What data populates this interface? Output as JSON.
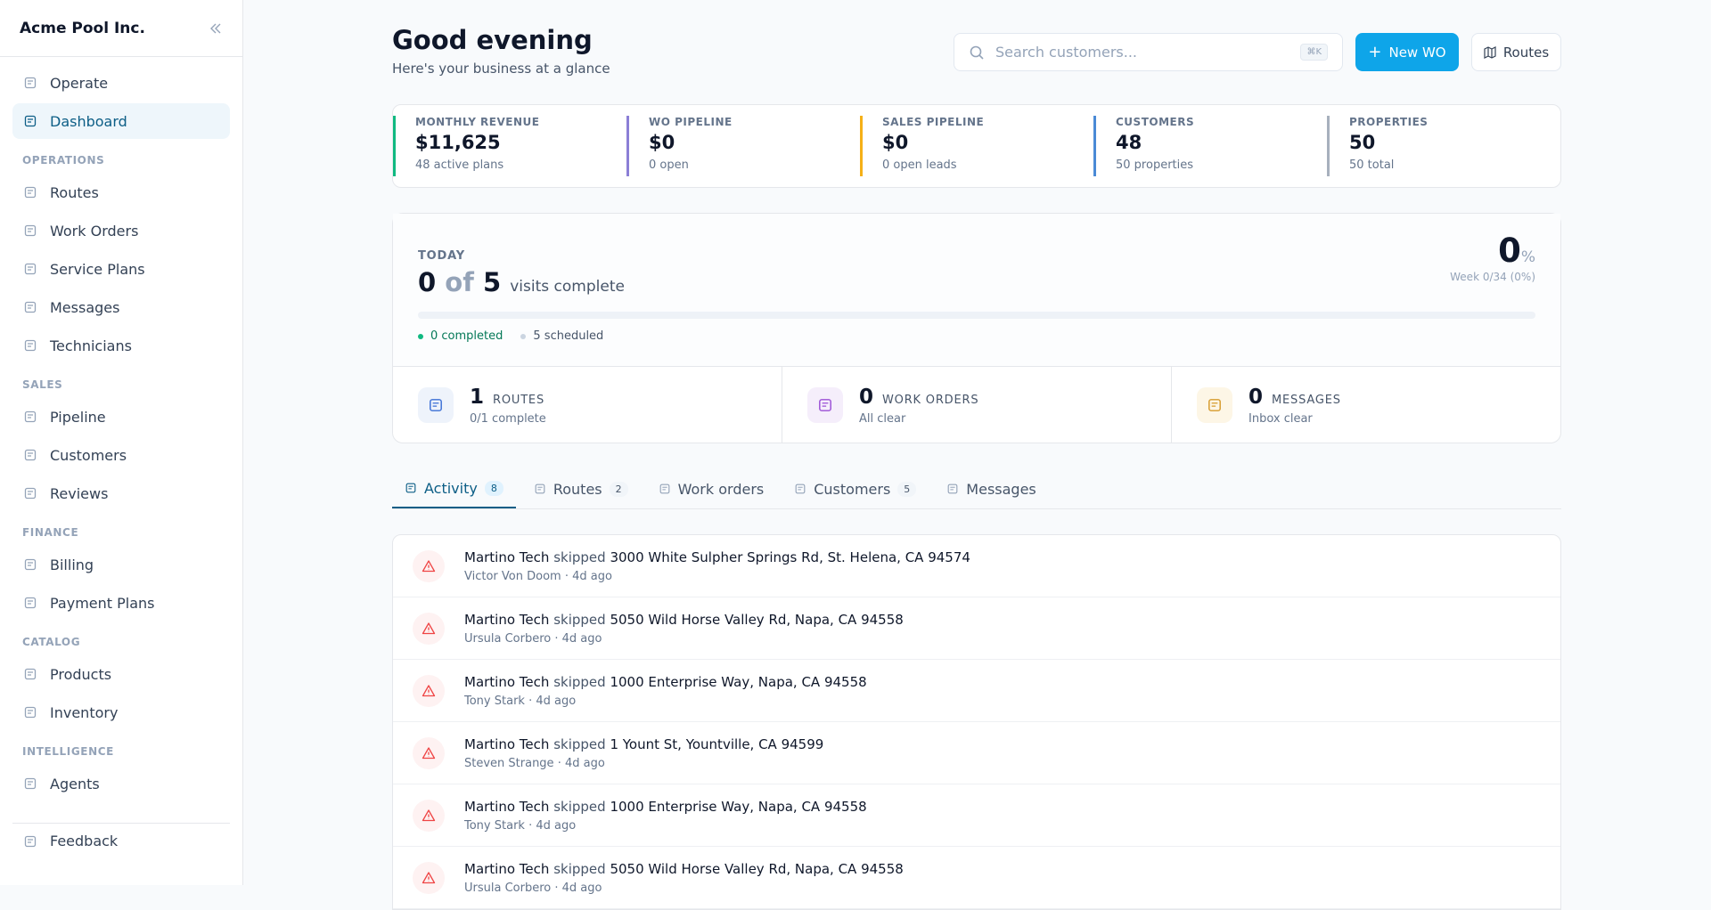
{
  "sidebar": {
    "brand": "Acme Pool Inc.",
    "top": [
      {
        "label": "Operate"
      },
      {
        "label": "Dashboard",
        "active": true
      }
    ],
    "sections": [
      {
        "title": "OPERATIONS",
        "items": [
          "Routes",
          "Work Orders",
          "Service Plans",
          "Messages",
          "Technicians"
        ]
      },
      {
        "title": "SALES",
        "items": [
          "Pipeline",
          "Customers",
          "Reviews"
        ]
      },
      {
        "title": "FINANCE",
        "items": [
          "Billing",
          "Payment Plans"
        ]
      },
      {
        "title": "CATALOG",
        "items": [
          "Products",
          "Inventory"
        ]
      },
      {
        "title": "INTELLIGENCE",
        "items": [
          "Agents"
        ]
      }
    ],
    "footer": "Feedback"
  },
  "header": {
    "title": "Good evening",
    "subtitle": "Here's your business at a glance",
    "search_placeholder": "Search customers...",
    "shortcut": "⌘K",
    "primary_button": "New WO",
    "secondary_button": "Routes"
  },
  "stats": [
    {
      "label": "MONTHLY REVENUE",
      "value": "$11,625",
      "sub": "48 active plans",
      "color": "#10b981"
    },
    {
      "label": "WO PIPELINE",
      "value": "$0",
      "sub": "0 open",
      "color": "#8b7fd6"
    },
    {
      "label": "SALES PIPELINE",
      "value": "$0",
      "sub": "0 open leads",
      "color": "#f5b017"
    },
    {
      "label": "CUSTOMERS",
      "value": "48",
      "sub": "50 properties",
      "color": "#4a8ad6"
    },
    {
      "label": "PROPERTIES",
      "value": "50",
      "sub": "50 total",
      "color": "#a7b0bd"
    }
  ],
  "today": {
    "label": "TODAY",
    "done": 0,
    "of": "of",
    "total": 5,
    "caption": "visits complete",
    "percent": 0,
    "percent_sign": "%",
    "week": "Week 0/34 (0%)",
    "completed": "0 completed",
    "scheduled": "5 scheduled"
  },
  "summary": [
    {
      "value": 1,
      "label": "ROUTES",
      "sub": "0/1 complete",
      "color": "#3b6fd6",
      "bg": "#eef3fb"
    },
    {
      "value": 0,
      "label": "WORK ORDERS",
      "sub": "All clear",
      "color": "#9b4fd6",
      "bg": "#f5eefb"
    },
    {
      "value": 0,
      "label": "MESSAGES",
      "sub": "Inbox clear",
      "color": "#d69a2b",
      "bg": "#fdf6e6"
    }
  ],
  "tabs": [
    {
      "label": "Activity",
      "count": 8,
      "active": true
    },
    {
      "label": "Routes",
      "count": 2
    },
    {
      "label": "Work orders"
    },
    {
      "label": "Customers",
      "count": 5
    },
    {
      "label": "Messages"
    }
  ],
  "activity": [
    {
      "actor": "Martino Tech",
      "verb": "skipped",
      "address": "3000 White Sulpher Springs Rd, St. Helena, CA 94574",
      "customer": "Victor Von Doom",
      "time": "4d ago"
    },
    {
      "actor": "Martino Tech",
      "verb": "skipped",
      "address": "5050 Wild Horse Valley Rd, Napa, CA 94558",
      "customer": "Ursula Corbero",
      "time": "4d ago"
    },
    {
      "actor": "Martino Tech",
      "verb": "skipped",
      "address": "1000 Enterprise Way, Napa, CA 94558",
      "customer": "Tony Stark",
      "time": "4d ago"
    },
    {
      "actor": "Martino Tech",
      "verb": "skipped",
      "address": "1 Yount St, Yountville, CA 94599",
      "customer": "Steven Strange",
      "time": "4d ago"
    },
    {
      "actor": "Martino Tech",
      "verb": "skipped",
      "address": "1000 Enterprise Way, Napa, CA 94558",
      "customer": "Tony Stark",
      "time": "4d ago"
    },
    {
      "actor": "Martino Tech",
      "verb": "skipped",
      "address": "5050 Wild Horse Valley Rd, Napa, CA 94558",
      "customer": "Ursula Corbero",
      "time": "4d ago"
    }
  ]
}
